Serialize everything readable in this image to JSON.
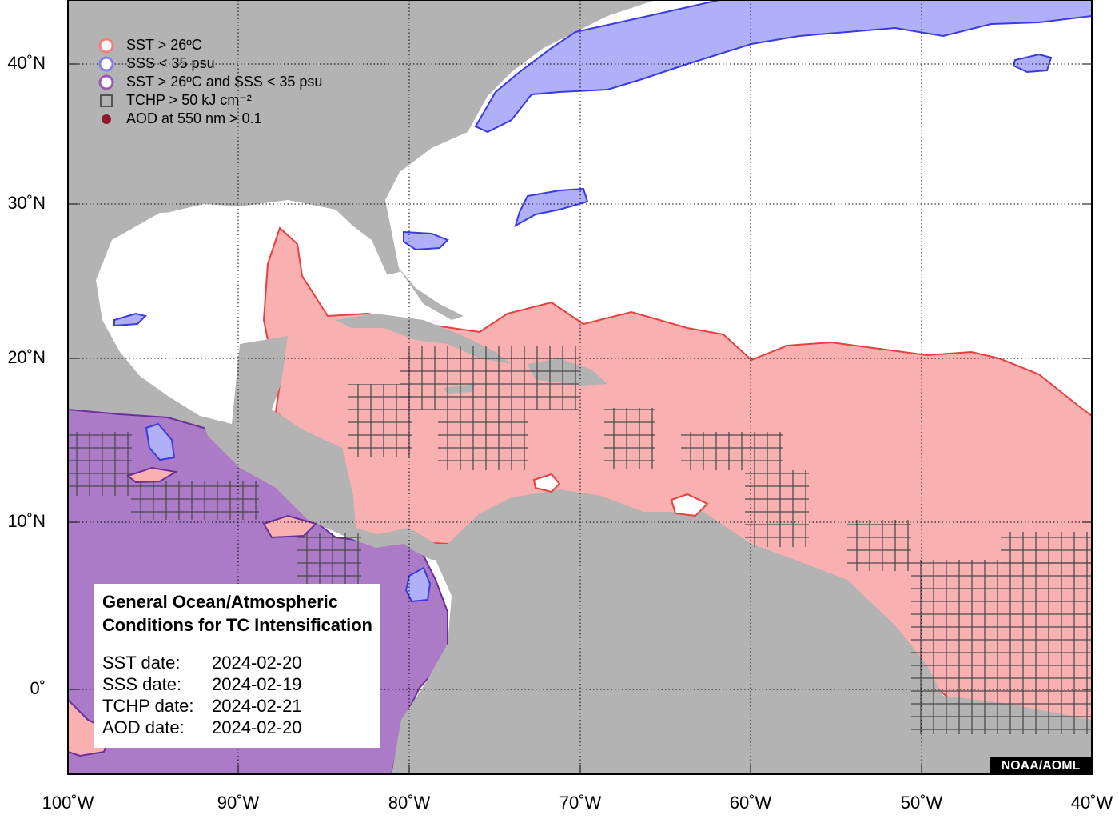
{
  "legend": {
    "items": [
      {
        "label": "SST > 26ºC",
        "marker": "circle",
        "color": "#f08080"
      },
      {
        "label": "SSS < 35 psu",
        "marker": "circle",
        "color": "#8080f0"
      },
      {
        "label": "SST > 26ºC and SSS < 35 psu",
        "marker": "circle",
        "color": "#9b59b6"
      },
      {
        "label": "TCHP > 50 kJ cm⁻²",
        "marker": "square",
        "color": "#555555"
      },
      {
        "label": "AOD at 550 nm > 0.1",
        "marker": "dot",
        "color": "#8b1a2a"
      }
    ]
  },
  "info_box": {
    "title_lines": [
      "General Ocean/Atmospheric",
      "Conditions for TC Intensification"
    ],
    "rows": [
      {
        "label": "SST date:",
        "date": "2024-02-20"
      },
      {
        "label": "SSS date:",
        "date": "2024-02-19"
      },
      {
        "label": "TCHP date:",
        "date": "2024-02-21"
      },
      {
        "label": "AOD date:",
        "date": "2024-02-20"
      }
    ]
  },
  "axes": {
    "x_labels": [
      "100˚W",
      "90˚W",
      "80˚W",
      "70˚W",
      "60˚W",
      "50˚W",
      "40˚W"
    ],
    "y_labels": [
      "40˚N",
      "30˚N",
      "20˚N",
      "10˚N",
      "0˚"
    ]
  },
  "credit": "NOAA/AOML"
}
